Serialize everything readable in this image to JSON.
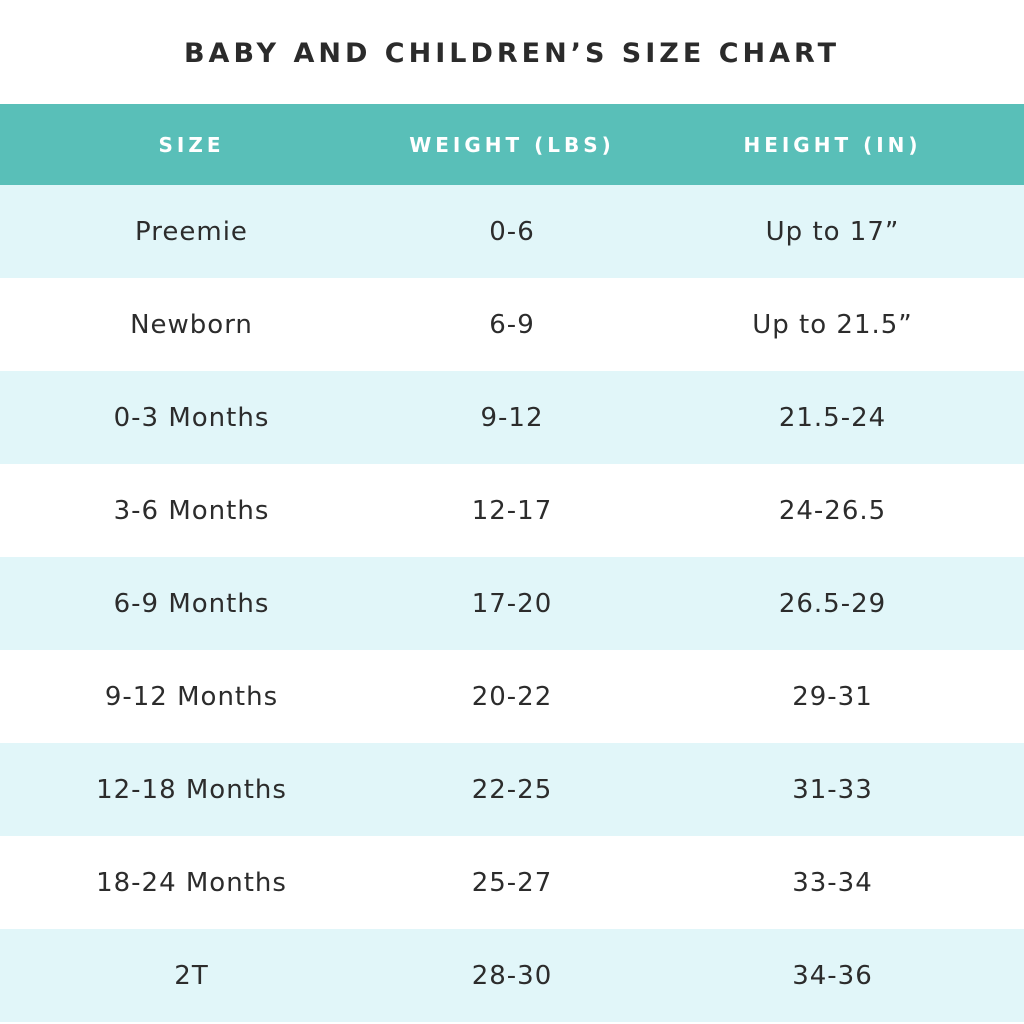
{
  "title": "BABY AND CHILDREN’S SIZE CHART",
  "columns": [
    "SIZE",
    "WEIGHT (LBS)",
    "HEIGHT (IN)"
  ],
  "rows": [
    {
      "size": "Preemie",
      "weight": "0-6",
      "height": "Up to 17”"
    },
    {
      "size": "Newborn",
      "weight": "6-9",
      "height": "Up to 21.5”"
    },
    {
      "size": "0-3 Months",
      "weight": "9-12",
      "height": "21.5-24"
    },
    {
      "size": "3-6 Months",
      "weight": "12-17",
      "height": "24-26.5"
    },
    {
      "size": "6-9 Months",
      "weight": "17-20",
      "height": "26.5-29"
    },
    {
      "size": "9-12 Months",
      "weight": "20-22",
      "height": "29-31"
    },
    {
      "size": "12-18 Months",
      "weight": "22-25",
      "height": "31-33"
    },
    {
      "size": "18-24 Months",
      "weight": "25-27",
      "height": "33-34"
    },
    {
      "size": "2T",
      "weight": "28-30",
      "height": "34-36"
    }
  ],
  "colors": {
    "header_bg": "#59bfb8",
    "row_alt_bg": "#e1f6f9",
    "row_bg": "#ffffff",
    "text": "#2c2c2c"
  }
}
